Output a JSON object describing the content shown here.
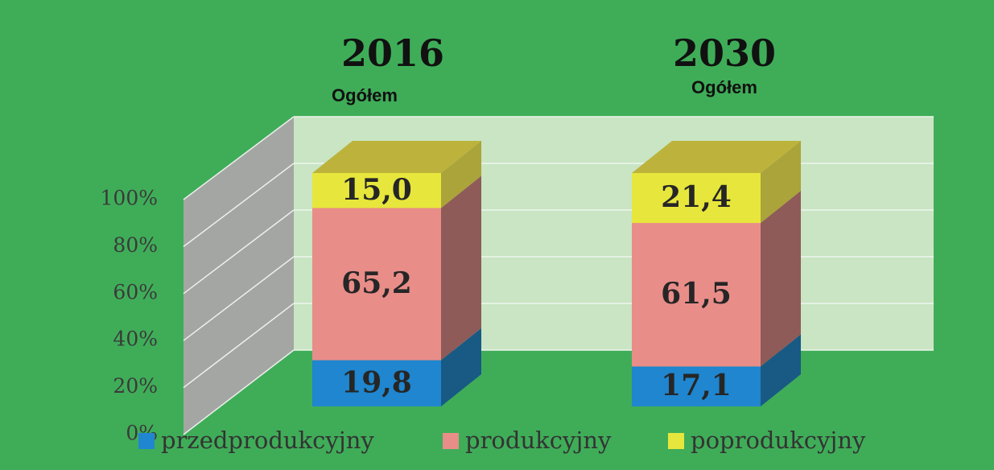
{
  "chart_data": {
    "type": "bar3d_stacked",
    "categories": [
      "2016",
      "2030"
    ],
    "category_subtitles": [
      "Ogółem",
      "Ogółem"
    ],
    "series": [
      {
        "name": "przedprodukcyjny",
        "color": "#1f86cf",
        "side_color": "#185a84",
        "values": [
          19.8,
          17.1
        ],
        "value_labels": [
          "19,8",
          "17,1"
        ]
      },
      {
        "name": "produkcyjny",
        "color": "#e98d89",
        "side_color": "#8e5b58",
        "values": [
          65.2,
          61.5
        ],
        "value_labels": [
          "65,2",
          "61,5"
        ]
      },
      {
        "name": "poprodukcyjny",
        "color": "#e7e63c",
        "side_color": "#aaa43a",
        "top_color": "#bdb33c",
        "values": [
          15.0,
          21.4
        ],
        "value_labels": [
          "15,0",
          "21,4"
        ]
      }
    ],
    "ylim": [
      0,
      100
    ],
    "yticks": [
      {
        "value": 0,
        "label": "0%"
      },
      {
        "value": 20,
        "label": "20%"
      },
      {
        "value": 40,
        "label": "40%"
      },
      {
        "value": 60,
        "label": "60%"
      },
      {
        "value": 80,
        "label": "80%"
      },
      {
        "value": 100,
        "label": "100%"
      }
    ],
    "grid": true,
    "legend": "bottom"
  }
}
